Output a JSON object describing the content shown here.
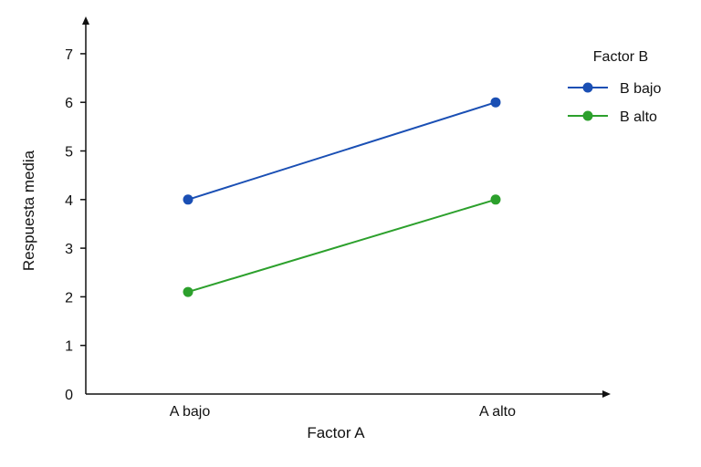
{
  "chart_data": {
    "type": "line",
    "categories": [
      "A bajo",
      "A alto"
    ],
    "series": [
      {
        "name": "B bajo",
        "values": [
          4.0,
          6.0
        ],
        "color": "#1a4fb4"
      },
      {
        "name": "B alto",
        "values": [
          2.1,
          4.0
        ],
        "color": "#2ca02c"
      }
    ],
    "xlabel": "Factor A",
    "ylabel": "Respuesta media",
    "ylim": [
      0,
      7
    ],
    "yticks": [
      0,
      1,
      2,
      3,
      4,
      5,
      6,
      7
    ],
    "legend": {
      "title": "Factor B",
      "placement": "top-right"
    },
    "grid": false
  }
}
